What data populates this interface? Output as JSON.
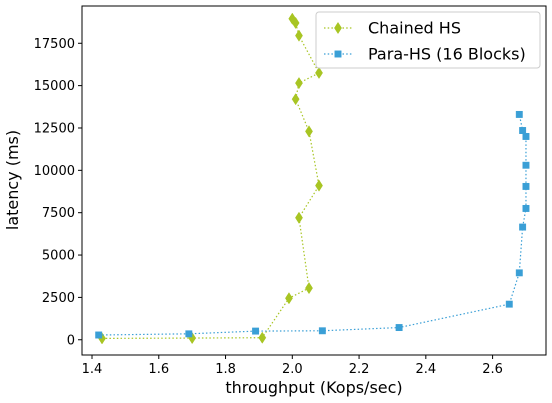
{
  "chart_data": {
    "type": "line",
    "xlabel": "throughput (Kops/sec)",
    "ylabel": "latency (ms)",
    "xlim": [
      1.37,
      2.76
    ],
    "ylim": [
      -900,
      19700
    ],
    "xticks": [
      1.4,
      1.6,
      1.8,
      2.0,
      2.2,
      2.4,
      2.6
    ],
    "xtick_labels": [
      "1.4",
      "1.6",
      "1.8",
      "2.0",
      "2.2",
      "2.4",
      "2.6"
    ],
    "yticks": [
      0,
      2500,
      5000,
      7500,
      10000,
      12500,
      15000,
      17500
    ],
    "ytick_labels": [
      "0",
      "2500",
      "5000",
      "7500",
      "10000",
      "12500",
      "15000",
      "17500"
    ],
    "grid": false,
    "legend_position": "top-right",
    "series": [
      {
        "name": "Chained HS",
        "color": "#a8c523",
        "marker": "diamond",
        "line_style": "dotted",
        "points": [
          [
            1.43,
            80
          ],
          [
            1.7,
            100
          ],
          [
            1.91,
            120
          ],
          [
            1.99,
            2450
          ],
          [
            2.05,
            3050
          ],
          [
            2.02,
            7200
          ],
          [
            2.08,
            9100
          ],
          [
            2.05,
            12300
          ],
          [
            2.01,
            14200
          ],
          [
            2.02,
            15150
          ],
          [
            2.08,
            15750
          ],
          [
            2.02,
            17950
          ],
          [
            2.01,
            18700
          ],
          [
            2.0,
            18950
          ]
        ]
      },
      {
        "name": "Para-HS (16 Blocks)",
        "color": "#3a9fd6",
        "marker": "square",
        "line_style": "dotted",
        "points": [
          [
            1.42,
            280
          ],
          [
            1.69,
            350
          ],
          [
            1.89,
            510
          ],
          [
            2.09,
            530
          ],
          [
            2.32,
            720
          ],
          [
            2.65,
            2100
          ],
          [
            2.68,
            3950
          ],
          [
            2.69,
            6650
          ],
          [
            2.7,
            7750
          ],
          [
            2.7,
            9050
          ],
          [
            2.7,
            10300
          ],
          [
            2.7,
            12000
          ],
          [
            2.69,
            12350
          ],
          [
            2.68,
            13300
          ]
        ]
      }
    ]
  }
}
